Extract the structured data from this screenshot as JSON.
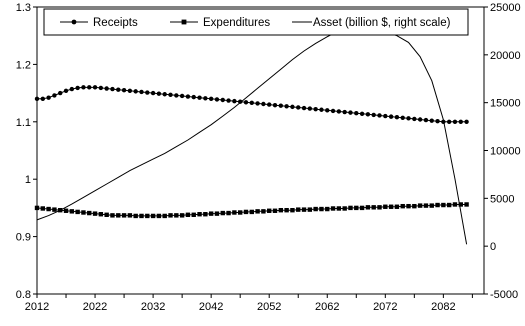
{
  "chart_data": {
    "type": "line",
    "title": "",
    "xlabel": "",
    "ylabel": "",
    "y2label": "",
    "x": [
      2012,
      2014,
      2016,
      2018,
      2020,
      2022,
      2024,
      2026,
      2028,
      2030,
      2032,
      2034,
      2036,
      2038,
      2040,
      2042,
      2044,
      2046,
      2048,
      2050,
      2052,
      2054,
      2056,
      2058,
      2060,
      2062,
      2064,
      2066,
      2068,
      2070,
      2072,
      2074,
      2076,
      2078,
      2080,
      2082,
      2084,
      2086
    ],
    "xlim": [
      2012,
      2089
    ],
    "xticks": [
      "2012",
      "2022",
      "2032",
      "2042",
      "2052",
      "2062",
      "2072",
      "2082"
    ],
    "ylim": [
      0.8,
      1.3
    ],
    "yticks": [
      "0.8",
      "0.9",
      "1",
      "1.1",
      "1.2",
      "1.3"
    ],
    "y2lim": [
      -5000,
      25000
    ],
    "y2ticks": [
      "-5000",
      "0",
      "5000",
      "10000",
      "15000",
      "20000",
      "25000"
    ],
    "grid": false,
    "legend_position": "top",
    "series": [
      {
        "name": "Receipts",
        "axis": "left",
        "marker": "circle",
        "color": "#000000",
        "x": [
          2012,
          2013,
          2014,
          2015,
          2016,
          2017,
          2018,
          2019,
          2020,
          2021,
          2022,
          2023,
          2024,
          2025,
          2026,
          2027,
          2028,
          2029,
          2030,
          2031,
          2032,
          2033,
          2034,
          2035,
          2036,
          2037,
          2038,
          2039,
          2040,
          2041,
          2042,
          2043,
          2044,
          2045,
          2046,
          2047,
          2048,
          2049,
          2050,
          2051,
          2052,
          2053,
          2054,
          2055,
          2056,
          2057,
          2058,
          2059,
          2060,
          2061,
          2062,
          2063,
          2064,
          2065,
          2066,
          2067,
          2068,
          2069,
          2070,
          2071,
          2072,
          2073,
          2074,
          2075,
          2076,
          2077,
          2078,
          2079,
          2080,
          2081,
          2082,
          2083,
          2084,
          2085,
          2086
        ],
        "values": [
          1.14,
          1.14,
          1.142,
          1.146,
          1.15,
          1.154,
          1.157,
          1.159,
          1.16,
          1.16,
          1.16,
          1.159,
          1.158,
          1.157,
          1.156,
          1.155,
          1.154,
          1.153,
          1.152,
          1.151,
          1.15,
          1.149,
          1.148,
          1.147,
          1.146,
          1.145,
          1.144,
          1.143,
          1.142,
          1.141,
          1.14,
          1.139,
          1.138,
          1.137,
          1.136,
          1.135,
          1.134,
          1.133,
          1.132,
          1.131,
          1.13,
          1.129,
          1.128,
          1.127,
          1.126,
          1.125,
          1.124,
          1.123,
          1.122,
          1.121,
          1.12,
          1.119,
          1.118,
          1.117,
          1.116,
          1.115,
          1.114,
          1.113,
          1.112,
          1.111,
          1.11,
          1.109,
          1.108,
          1.107,
          1.106,
          1.105,
          1.104,
          1.103,
          1.102,
          1.101,
          1.1,
          1.1,
          1.1,
          1.1,
          1.1
        ]
      },
      {
        "name": "Expenditures",
        "axis": "left",
        "marker": "square",
        "color": "#000000",
        "x": [
          2012,
          2013,
          2014,
          2015,
          2016,
          2017,
          2018,
          2019,
          2020,
          2021,
          2022,
          2023,
          2024,
          2025,
          2026,
          2027,
          2028,
          2029,
          2030,
          2031,
          2032,
          2033,
          2034,
          2035,
          2036,
          2037,
          2038,
          2039,
          2040,
          2041,
          2042,
          2043,
          2044,
          2045,
          2046,
          2047,
          2048,
          2049,
          2050,
          2051,
          2052,
          2053,
          2054,
          2055,
          2056,
          2057,
          2058,
          2059,
          2060,
          2061,
          2062,
          2063,
          2064,
          2065,
          2066,
          2067,
          2068,
          2069,
          2070,
          2071,
          2072,
          2073,
          2074,
          2075,
          2076,
          2077,
          2078,
          2079,
          2080,
          2081,
          2082,
          2083,
          2084,
          2085,
          2086
        ],
        "values": [
          0.95,
          0.949,
          0.948,
          0.947,
          0.946,
          0.945,
          0.944,
          0.943,
          0.942,
          0.941,
          0.94,
          0.939,
          0.938,
          0.937,
          0.937,
          0.937,
          0.937,
          0.936,
          0.936,
          0.936,
          0.936,
          0.936,
          0.936,
          0.937,
          0.937,
          0.937,
          0.938,
          0.938,
          0.939,
          0.939,
          0.94,
          0.94,
          0.941,
          0.941,
          0.942,
          0.942,
          0.943,
          0.943,
          0.944,
          0.944,
          0.945,
          0.945,
          0.946,
          0.946,
          0.946,
          0.947,
          0.947,
          0.947,
          0.948,
          0.948,
          0.948,
          0.949,
          0.949,
          0.949,
          0.95,
          0.95,
          0.95,
          0.951,
          0.951,
          0.951,
          0.952,
          0.952,
          0.952,
          0.953,
          0.953,
          0.953,
          0.954,
          0.954,
          0.954,
          0.955,
          0.955,
          0.955,
          0.956,
          0.956,
          0.956
        ]
      },
      {
        "name": "Asset (billion $, right scale)",
        "axis": "right",
        "marker": "none",
        "color": "#000000",
        "x": [
          2012,
          2014,
          2016,
          2018,
          2020,
          2022,
          2024,
          2026,
          2028,
          2030,
          2032,
          2034,
          2036,
          2038,
          2040,
          2042,
          2044,
          2046,
          2048,
          2050,
          2052,
          2054,
          2056,
          2058,
          2060,
          2062,
          2064,
          2066,
          2068,
          2070,
          2072,
          2074,
          2076,
          2078,
          2080,
          2082,
          2084,
          2086
        ],
        "values": [
          2750,
          3200,
          3750,
          4400,
          5100,
          5800,
          6500,
          7200,
          7900,
          8500,
          9100,
          9700,
          10400,
          11100,
          11900,
          12700,
          13600,
          14500,
          15500,
          16500,
          17500,
          18500,
          19500,
          20400,
          21200,
          21900,
          22500,
          22700,
          22700,
          22600,
          22400,
          22000,
          21300,
          19800,
          17300,
          13200,
          7000,
          200
        ]
      }
    ]
  }
}
